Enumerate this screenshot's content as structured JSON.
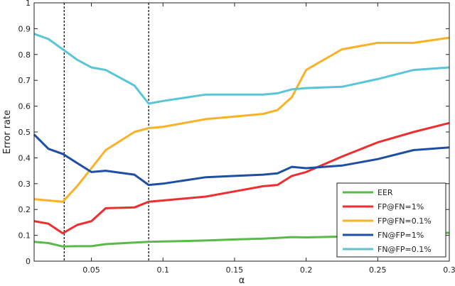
{
  "chart_data": {
    "type": "line",
    "title": "",
    "xlabel": "α",
    "ylabel": "Error rate",
    "xlim": [
      0.01,
      0.3
    ],
    "ylim": [
      0,
      1
    ],
    "grid": false,
    "legend_position": "lower right",
    "x_ticks": [
      0.05,
      0.1,
      0.15,
      0.2,
      0.25,
      0.3
    ],
    "x_tick_labels": [
      "0.05",
      "0.1",
      "0.15",
      "0.2",
      "0.25",
      "0.3"
    ],
    "y_ticks": [
      0,
      0.1,
      0.2,
      0.3,
      0.4,
      0.5,
      0.6,
      0.7,
      0.8,
      0.9,
      1
    ],
    "y_tick_labels": [
      "0",
      "0.1",
      "0.2",
      "0.3",
      "0.4",
      "0.5",
      "0.6",
      "0.7",
      "0.8",
      "0.9",
      "1"
    ],
    "vertical_reference_lines": [
      {
        "x": 0.031,
        "style": "dashed",
        "color": "#000000"
      },
      {
        "x": 0.09,
        "style": "dashed",
        "color": "#000000"
      }
    ],
    "x": [
      0.01,
      0.02,
      0.03,
      0.04,
      0.05,
      0.06,
      0.08,
      0.09,
      0.1,
      0.13,
      0.15,
      0.17,
      0.18,
      0.19,
      0.2,
      0.225,
      0.25,
      0.275,
      0.3
    ],
    "series": [
      {
        "name": "EER",
        "color": "#5ab947",
        "values": [
          0.075,
          0.07,
          0.057,
          0.058,
          0.058,
          0.066,
          0.072,
          0.075,
          0.076,
          0.08,
          0.084,
          0.087,
          0.09,
          0.093,
          0.092,
          0.095,
          0.1,
          0.105,
          0.11
        ]
      },
      {
        "name": "FP@FN=1%",
        "color": "#ee2e2f",
        "values": [
          0.155,
          0.145,
          0.108,
          0.14,
          0.155,
          0.205,
          0.208,
          0.23,
          0.235,
          0.25,
          0.27,
          0.29,
          0.295,
          0.33,
          0.345,
          0.405,
          0.46,
          0.5,
          0.535
        ]
      },
      {
        "name": "FP@FN=0.1%",
        "color": "#fbb125",
        "values": [
          0.24,
          0.235,
          0.23,
          0.29,
          0.36,
          0.43,
          0.5,
          0.515,
          0.52,
          0.55,
          0.56,
          0.57,
          0.585,
          0.635,
          0.74,
          0.82,
          0.845,
          0.845,
          0.865
        ]
      },
      {
        "name": "FN@FP=1%",
        "color": "#1f4fa3",
        "values": [
          0.49,
          0.435,
          0.415,
          0.38,
          0.345,
          0.35,
          0.335,
          0.295,
          0.3,
          0.325,
          0.33,
          0.335,
          0.34,
          0.365,
          0.36,
          0.37,
          0.395,
          0.43,
          0.44
        ]
      },
      {
        "name": "FN@FP=0.1%",
        "color": "#5bc5d8",
        "values": [
          0.88,
          0.86,
          0.82,
          0.78,
          0.75,
          0.74,
          0.68,
          0.61,
          0.62,
          0.645,
          0.645,
          0.645,
          0.65,
          0.665,
          0.67,
          0.675,
          0.705,
          0.74,
          0.75
        ]
      }
    ]
  },
  "legend": {
    "items": [
      {
        "label": "EER",
        "color": "#5ab947"
      },
      {
        "label": "FP@FN=1%",
        "color": "#ee2e2f"
      },
      {
        "label": "FP@FN=0.1%",
        "color": "#fbb125"
      },
      {
        "label": "FN@FP=1%",
        "color": "#1f4fa3"
      },
      {
        "label": "FN@FP=0.1%",
        "color": "#5bc5d8"
      }
    ]
  },
  "axes": {
    "xlabel": "α",
    "ylabel": "Error rate"
  }
}
